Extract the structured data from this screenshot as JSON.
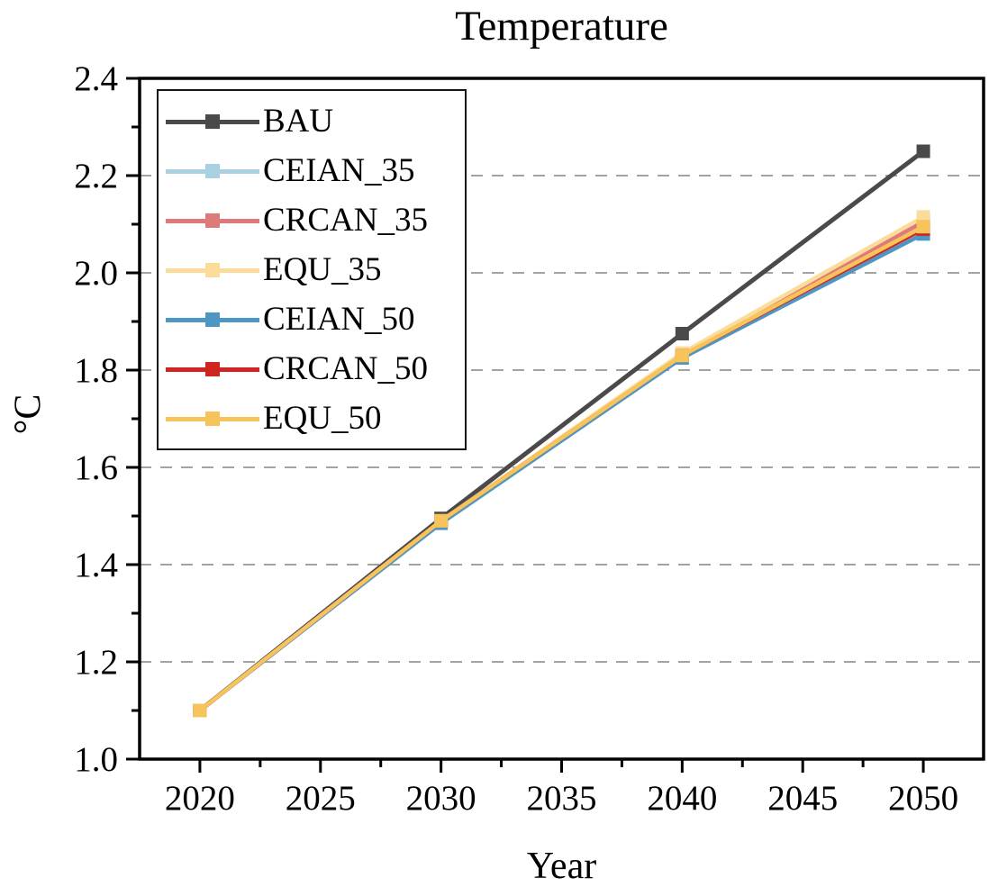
{
  "title": "Temperature",
  "chart_data": {
    "type": "line",
    "title": "Temperature",
    "xlabel": "Year",
    "ylabel": "°C",
    "x": [
      2020,
      2030,
      2040,
      2050
    ],
    "x_range": [
      2017.5,
      2052.5
    ],
    "y_range": [
      1.0,
      2.4
    ],
    "x_ticks": [
      2020,
      2025,
      2030,
      2035,
      2040,
      2045,
      2050
    ],
    "x_minor_ticks": [
      2022.5,
      2027.5,
      2032.5,
      2037.5,
      2042.5,
      2047.5
    ],
    "y_ticks": [
      1.0,
      1.2,
      1.4,
      1.6,
      1.8,
      2.0,
      2.2,
      2.4
    ],
    "y_minor_ticks": [
      1.1,
      1.3,
      1.5,
      1.7,
      1.9,
      2.1,
      2.3
    ],
    "gridlines_y": [
      1.2,
      1.4,
      1.6,
      1.8,
      2.0,
      2.2
    ],
    "grid": "horizontal-dashed",
    "legend_position": "top-left",
    "frame_color": "#000000",
    "gridline_color": "#a3a3a3",
    "series": [
      {
        "name": "BAU",
        "color": "#4a4a4a",
        "values": [
          1.1,
          1.495,
          1.875,
          2.25
        ]
      },
      {
        "name": "CEIAN_35",
        "color": "#a9d1e2",
        "values": [
          1.1,
          1.49,
          1.83,
          2.1
        ]
      },
      {
        "name": "CRCAN_35",
        "color": "#e07a7a",
        "values": [
          1.1,
          1.49,
          1.83,
          2.105
        ]
      },
      {
        "name": "EQU_35",
        "color": "#fbdc9b",
        "values": [
          1.1,
          1.49,
          1.835,
          2.115
        ]
      },
      {
        "name": "CEIAN_50",
        "color": "#4e97c5",
        "values": [
          1.1,
          1.485,
          1.825,
          2.08
        ]
      },
      {
        "name": "CRCAN_50",
        "color": "#cf2420",
        "values": [
          1.1,
          1.49,
          1.83,
          2.09
        ]
      },
      {
        "name": "EQU_50",
        "color": "#f7c45c",
        "values": [
          1.1,
          1.49,
          1.83,
          2.095
        ]
      }
    ]
  }
}
